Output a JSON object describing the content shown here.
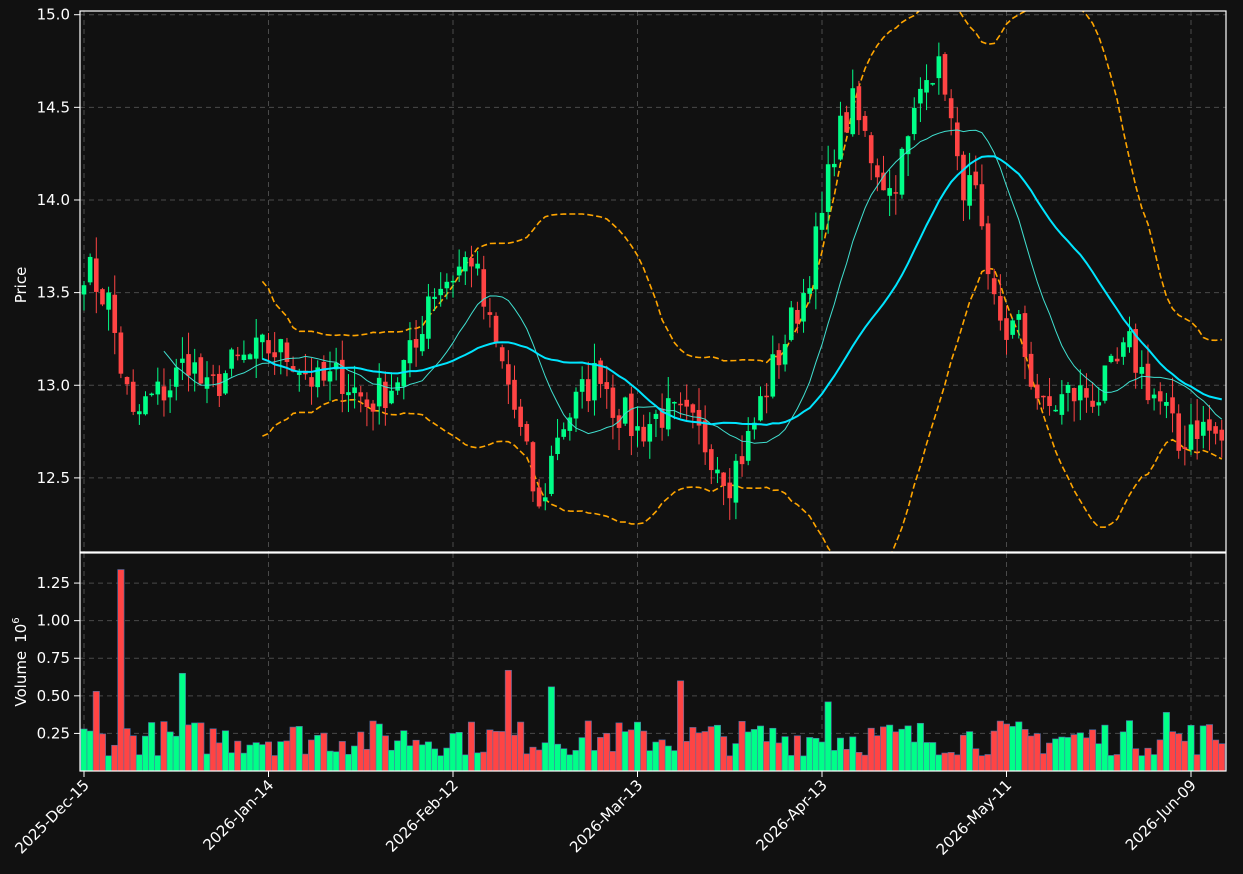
{
  "chart_data": [
    {
      "type": "candlestick",
      "panel": "price",
      "ylabel": "Price",
      "ylim": [
        12.1,
        15.02
      ],
      "yticks": [
        12.5,
        13.0,
        13.5,
        14.0,
        14.5,
        15.0
      ],
      "ytick_labels": [
        "12.5",
        "13.0",
        "13.5",
        "14.0",
        "14.5",
        "15.0"
      ],
      "xticks": [
        {
          "index": 0,
          "label": "2025-Dec-15"
        },
        {
          "index": 30,
          "label": "2026-Jan-14"
        },
        {
          "index": 60,
          "label": "2026-Feb-12"
        },
        {
          "index": 90,
          "label": "2026-Mar-13"
        },
        {
          "index": 120,
          "label": "2026-Apr-13"
        },
        {
          "index": 150,
          "label": "2026-May-11"
        },
        {
          "index": 180,
          "label": "2026-Jun-09"
        }
      ],
      "grid": true,
      "colors": {
        "up": "#00ff88",
        "down": "#ff4444",
        "ma_fast": "#40e0d0",
        "ma_slow": "#00e5ff",
        "bands": "#ffa500",
        "background": "#111111"
      },
      "series": [
        {
          "name": "",
          "kind": "moving-average-fast"
        },
        {
          "name": "",
          "kind": "moving-average-slow"
        },
        {
          "name": "",
          "kind": "upper-band"
        },
        {
          "name": "",
          "kind": "lower-band"
        }
      ],
      "anchors": [
        [
          0,
          13.65
        ],
        [
          4,
          13.45
        ],
        [
          6,
          13.1
        ],
        [
          8,
          12.8
        ],
        [
          10,
          12.9
        ],
        [
          14,
          13.0
        ],
        [
          17,
          13.15
        ],
        [
          20,
          12.95
        ],
        [
          24,
          13.1
        ],
        [
          30,
          13.2
        ],
        [
          34,
          13.15
        ],
        [
          38,
          13.0
        ],
        [
          42,
          13.05
        ],
        [
          46,
          12.9
        ],
        [
          50,
          13.0
        ],
        [
          54,
          13.2
        ],
        [
          56,
          13.5
        ],
        [
          60,
          13.6
        ],
        [
          63,
          13.7
        ],
        [
          66,
          13.3
        ],
        [
          69,
          13.0
        ],
        [
          72,
          12.6
        ],
        [
          74,
          12.3
        ],
        [
          77,
          12.75
        ],
        [
          80,
          12.9
        ],
        [
          84,
          13.1
        ],
        [
          86,
          12.9
        ],
        [
          90,
          12.75
        ],
        [
          94,
          12.85
        ],
        [
          98,
          12.8
        ],
        [
          102,
          12.65
        ],
        [
          105,
          12.5
        ],
        [
          108,
          12.7
        ],
        [
          111,
          13.0
        ],
        [
          114,
          13.25
        ],
        [
          117,
          13.5
        ],
        [
          120,
          13.9
        ],
        [
          122,
          14.3
        ],
        [
          125,
          14.5
        ],
        [
          128,
          14.25
        ],
        [
          131,
          14.05
        ],
        [
          134,
          14.3
        ],
        [
          137,
          14.75
        ],
        [
          140,
          14.65
        ],
        [
          142,
          14.15
        ],
        [
          145,
          14.0
        ],
        [
          147,
          13.5
        ],
        [
          150,
          13.3
        ],
        [
          152,
          13.3
        ],
        [
          154,
          13.05
        ],
        [
          156,
          12.85
        ],
        [
          160,
          12.95
        ],
        [
          165,
          12.95
        ],
        [
          170,
          13.2
        ],
        [
          173,
          13.0
        ],
        [
          176,
          12.85
        ],
        [
          178,
          12.65
        ],
        [
          180,
          12.8
        ],
        [
          183,
          12.75
        ],
        [
          185,
          12.7
        ]
      ]
    },
    {
      "type": "bar",
      "panel": "volume",
      "ylabel": "Volume",
      "yscale_label": "10",
      "yscale_exp": "6",
      "ylim": [
        0,
        1.45
      ],
      "yticks": [
        0.25,
        0.5,
        0.75,
        1.0,
        1.25
      ],
      "ytick_labels": [
        "0.25",
        "0.50",
        "0.75",
        "1.00",
        "1.25"
      ],
      "spikes": [
        [
          2,
          0.53
        ],
        [
          6,
          1.34
        ],
        [
          16,
          0.65
        ],
        [
          69,
          0.67
        ],
        [
          76,
          0.56
        ],
        [
          97,
          0.6
        ],
        [
          121,
          0.46
        ],
        [
          176,
          0.39
        ]
      ],
      "grid": true
    }
  ]
}
